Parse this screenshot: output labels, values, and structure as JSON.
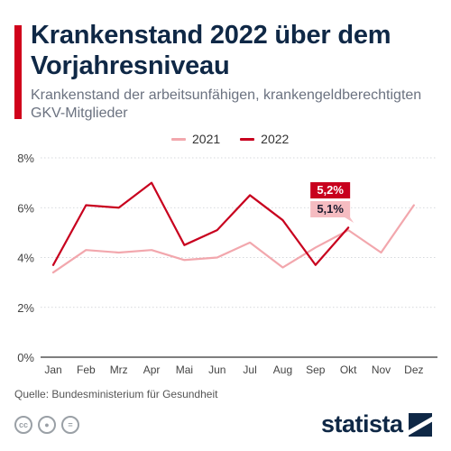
{
  "title": "Krankenstand 2022 über dem Vorjahresniveau",
  "subtitle": "Krankenstand der arbeitsunfähigen, krankengeldberechtigten GKV-Mitglieder",
  "source": "Quelle: Bundesministerium für Gesundheit",
  "brand": "statista",
  "icons": [
    "cc-icon",
    "person-icon",
    "equals-icon"
  ],
  "colors": {
    "accent": "#d0021b",
    "series_2021": "#f2a7ad",
    "series_2022": "#c8001e",
    "title": "#0f2846"
  },
  "chart_data": {
    "type": "line",
    "categories": [
      "Jan",
      "Feb",
      "Mrz",
      "Apr",
      "Mai",
      "Jun",
      "Jul",
      "Aug",
      "Sep",
      "Okt",
      "Nov",
      "Dez"
    ],
    "series": [
      {
        "name": "2021",
        "color": "#f2a7ad",
        "values": [
          3.4,
          4.3,
          4.2,
          4.3,
          3.9,
          4.0,
          4.6,
          3.6,
          4.4,
          5.1,
          4.2,
          6.1
        ]
      },
      {
        "name": "2022",
        "color": "#c8001e",
        "values": [
          3.7,
          6.1,
          6.0,
          7.0,
          4.5,
          5.1,
          6.5,
          5.5,
          3.7,
          5.2,
          null,
          null
        ]
      }
    ],
    "ylim": [
      0,
      8
    ],
    "yticks": [
      "0%",
      "2%",
      "4%",
      "6%",
      "8%"
    ],
    "ytick_values": [
      0,
      2,
      4,
      6,
      8
    ],
    "grid": "horizontal",
    "legend": "top-center",
    "annotations": [
      {
        "series": "2022",
        "category": "Okt",
        "label": "5,2%"
      },
      {
        "series": "2021",
        "category": "Okt",
        "label": "5,1%"
      }
    ]
  }
}
